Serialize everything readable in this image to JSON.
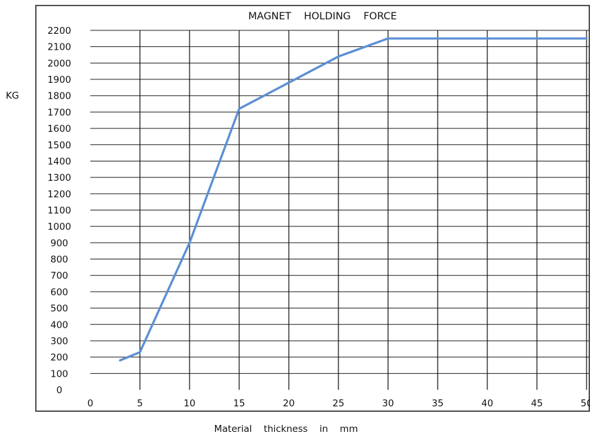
{
  "chart_data": {
    "type": "line",
    "title": "MAGNET    HOLDING    FORCE",
    "xlabel": "Material    thickness    in    mm",
    "ylabel": "KG",
    "xlim": [
      0,
      50
    ],
    "ylim": [
      0,
      2200
    ],
    "x_ticks": [
      0,
      5,
      10,
      15,
      20,
      25,
      30,
      35,
      40,
      45,
      50
    ],
    "y_ticks": [
      0,
      100,
      200,
      300,
      400,
      500,
      600,
      700,
      800,
      900,
      1000,
      1100,
      1200,
      1300,
      1400,
      1500,
      1600,
      1700,
      1800,
      1900,
      2000,
      2100,
      2200
    ],
    "grid": true,
    "legend": "none",
    "series": [
      {
        "color": "#5b8fd4",
        "x": [
          3,
          5,
          10,
          15,
          20,
          25,
          30,
          35,
          40,
          45,
          50
        ],
        "y": [
          180,
          230,
          900,
          1720,
          1880,
          2040,
          2150,
          2150,
          2150,
          2150,
          2150
        ]
      }
    ]
  }
}
